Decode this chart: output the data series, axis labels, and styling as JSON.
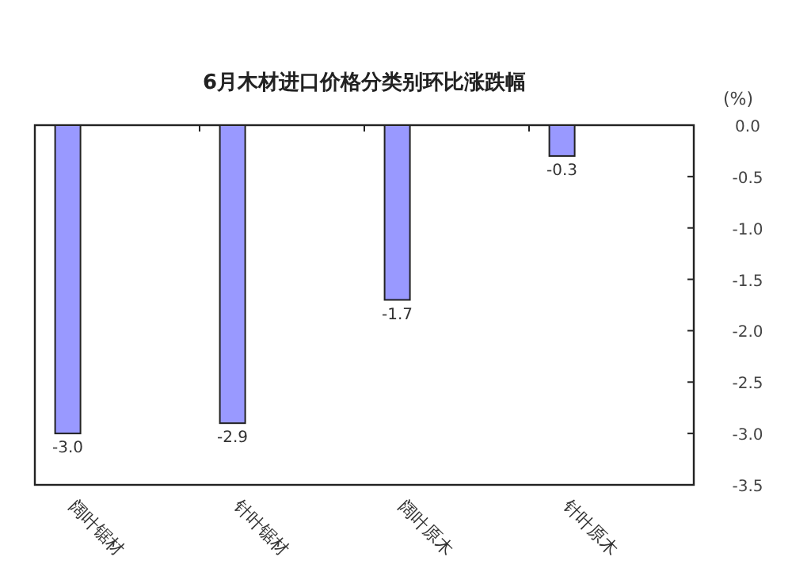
{
  "chart_data": {
    "type": "bar",
    "title": "6月木材进口价格分类别环比涨跌幅",
    "ylabel": "(%)",
    "categories": [
      "阔叶锯材",
      "针叶锯材",
      "阔叶原木",
      "针叶原木"
    ],
    "values": [
      -3.0,
      -2.9,
      -1.7,
      -0.3
    ],
    "color": "#9999ff",
    "value_labels": [
      "-3.0",
      "-2.9",
      "-1.7",
      "-0.3"
    ],
    "ylim": [
      -3.5,
      0
    ],
    "yticks": [
      {
        "value": 0,
        "label": "0.0"
      },
      {
        "value": -0.5,
        "label": "-0.5"
      },
      {
        "value": -1,
        "label": "-1.0"
      },
      {
        "value": -1.5,
        "label": "-1.5"
      },
      {
        "value": -2,
        "label": "-2.0"
      },
      {
        "value": -2.5,
        "label": "-2.5"
      },
      {
        "value": -3,
        "label": "-3.0"
      },
      {
        "value": -3.5,
        "label": "-3.5"
      }
    ],
    "grid": false
  }
}
